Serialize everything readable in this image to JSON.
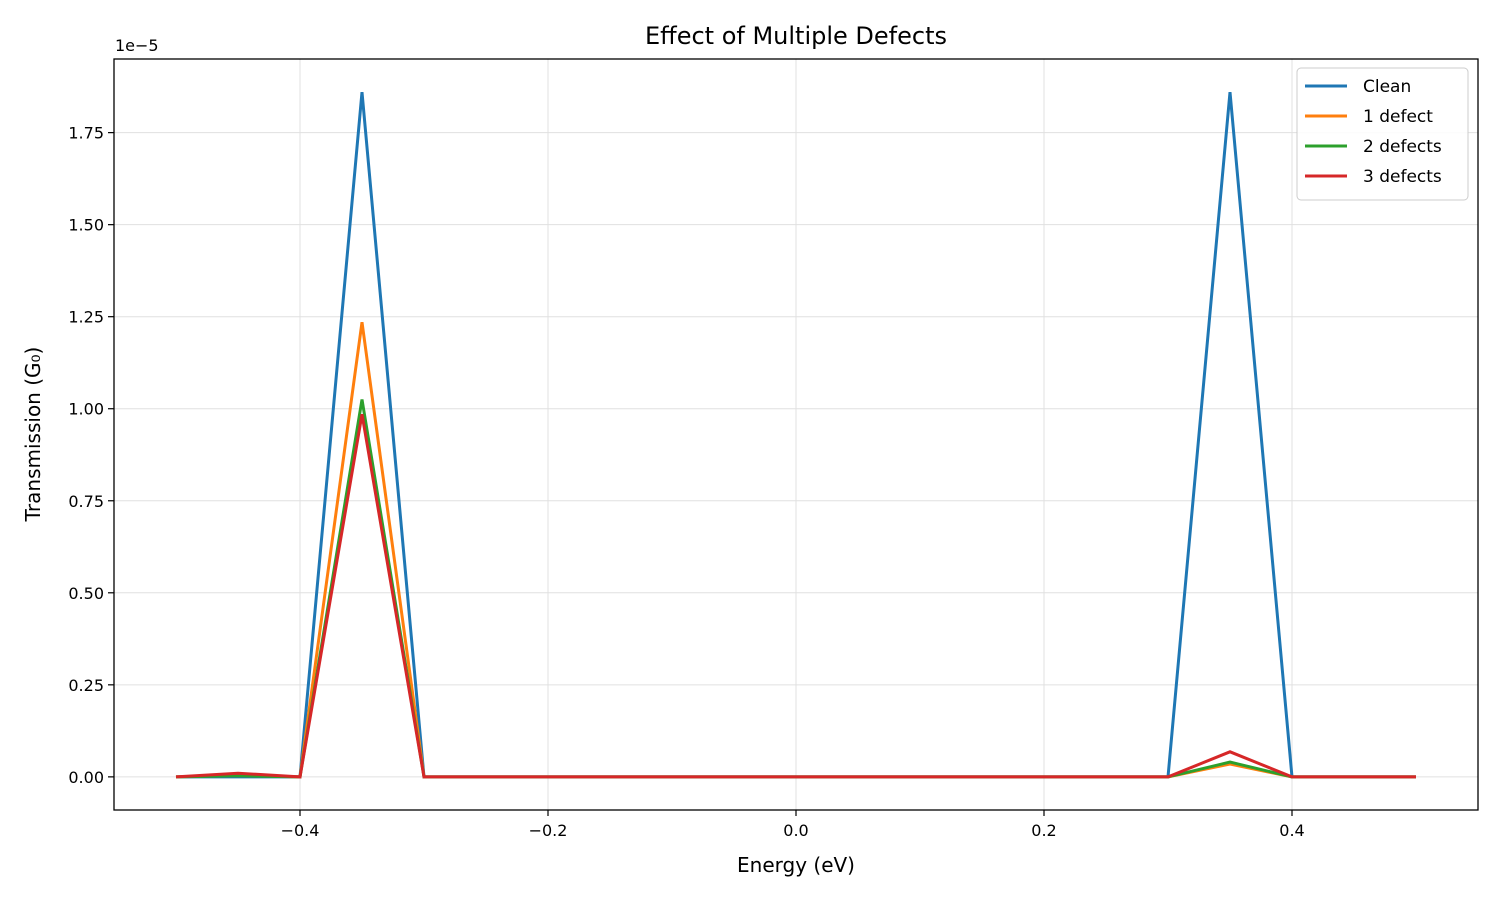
{
  "chart_data": {
    "type": "line",
    "title": "Effect of Multiple Defects",
    "xlabel": "Energy (eV)",
    "ylabel": "Transmission (G₀)",
    "y_offset_label": "1e−5",
    "xlim": [
      -0.55,
      0.55
    ],
    "ylim": [
      -0.09,
      1.95
    ],
    "x_ticks": [
      -0.4,
      -0.2,
      0.0,
      0.2,
      0.4
    ],
    "x_tick_labels": [
      "−0.4",
      "−0.2",
      "0.0",
      "0.2",
      "0.4"
    ],
    "y_ticks": [
      0.0,
      0.25,
      0.5,
      0.75,
      1.0,
      1.25,
      1.5,
      1.75
    ],
    "y_tick_labels": [
      "0.00",
      "0.25",
      "0.50",
      "0.75",
      "1.00",
      "1.25",
      "1.50",
      "1.75"
    ],
    "grid": true,
    "legend_position": "top-right",
    "x": [
      -0.5,
      -0.45,
      -0.4,
      -0.35,
      -0.3,
      -0.25,
      -0.2,
      -0.15,
      -0.1,
      -0.05,
      0.0,
      0.05,
      0.1,
      0.15,
      0.2,
      0.25,
      0.3,
      0.35,
      0.4,
      0.45,
      0.5
    ],
    "series": [
      {
        "name": "Clean",
        "color": "#1f77b4",
        "values": [
          0,
          0,
          0,
          1.86,
          0,
          0,
          0,
          0,
          0,
          0,
          0,
          0,
          0,
          0,
          0,
          0,
          0,
          1.86,
          0,
          0,
          0
        ]
      },
      {
        "name": "1 defect",
        "color": "#ff7f0e",
        "values": [
          0,
          0.005,
          0,
          1.235,
          0,
          0,
          0,
          0,
          0,
          0,
          0,
          0,
          0,
          0,
          0,
          0,
          0,
          0.035,
          0,
          0,
          0
        ]
      },
      {
        "name": "2 defects",
        "color": "#2ca02c",
        "values": [
          0,
          0.003,
          0,
          1.025,
          0,
          0,
          0,
          0,
          0,
          0,
          0,
          0,
          0,
          0,
          0,
          0,
          0,
          0.04,
          0,
          0,
          0
        ]
      },
      {
        "name": "3 defects",
        "color": "#d62728",
        "values": [
          0,
          0.01,
          0,
          0.985,
          0,
          0,
          0,
          0,
          0,
          0,
          0,
          0,
          0,
          0,
          0,
          0,
          0,
          0.068,
          0,
          0,
          0
        ]
      }
    ]
  }
}
